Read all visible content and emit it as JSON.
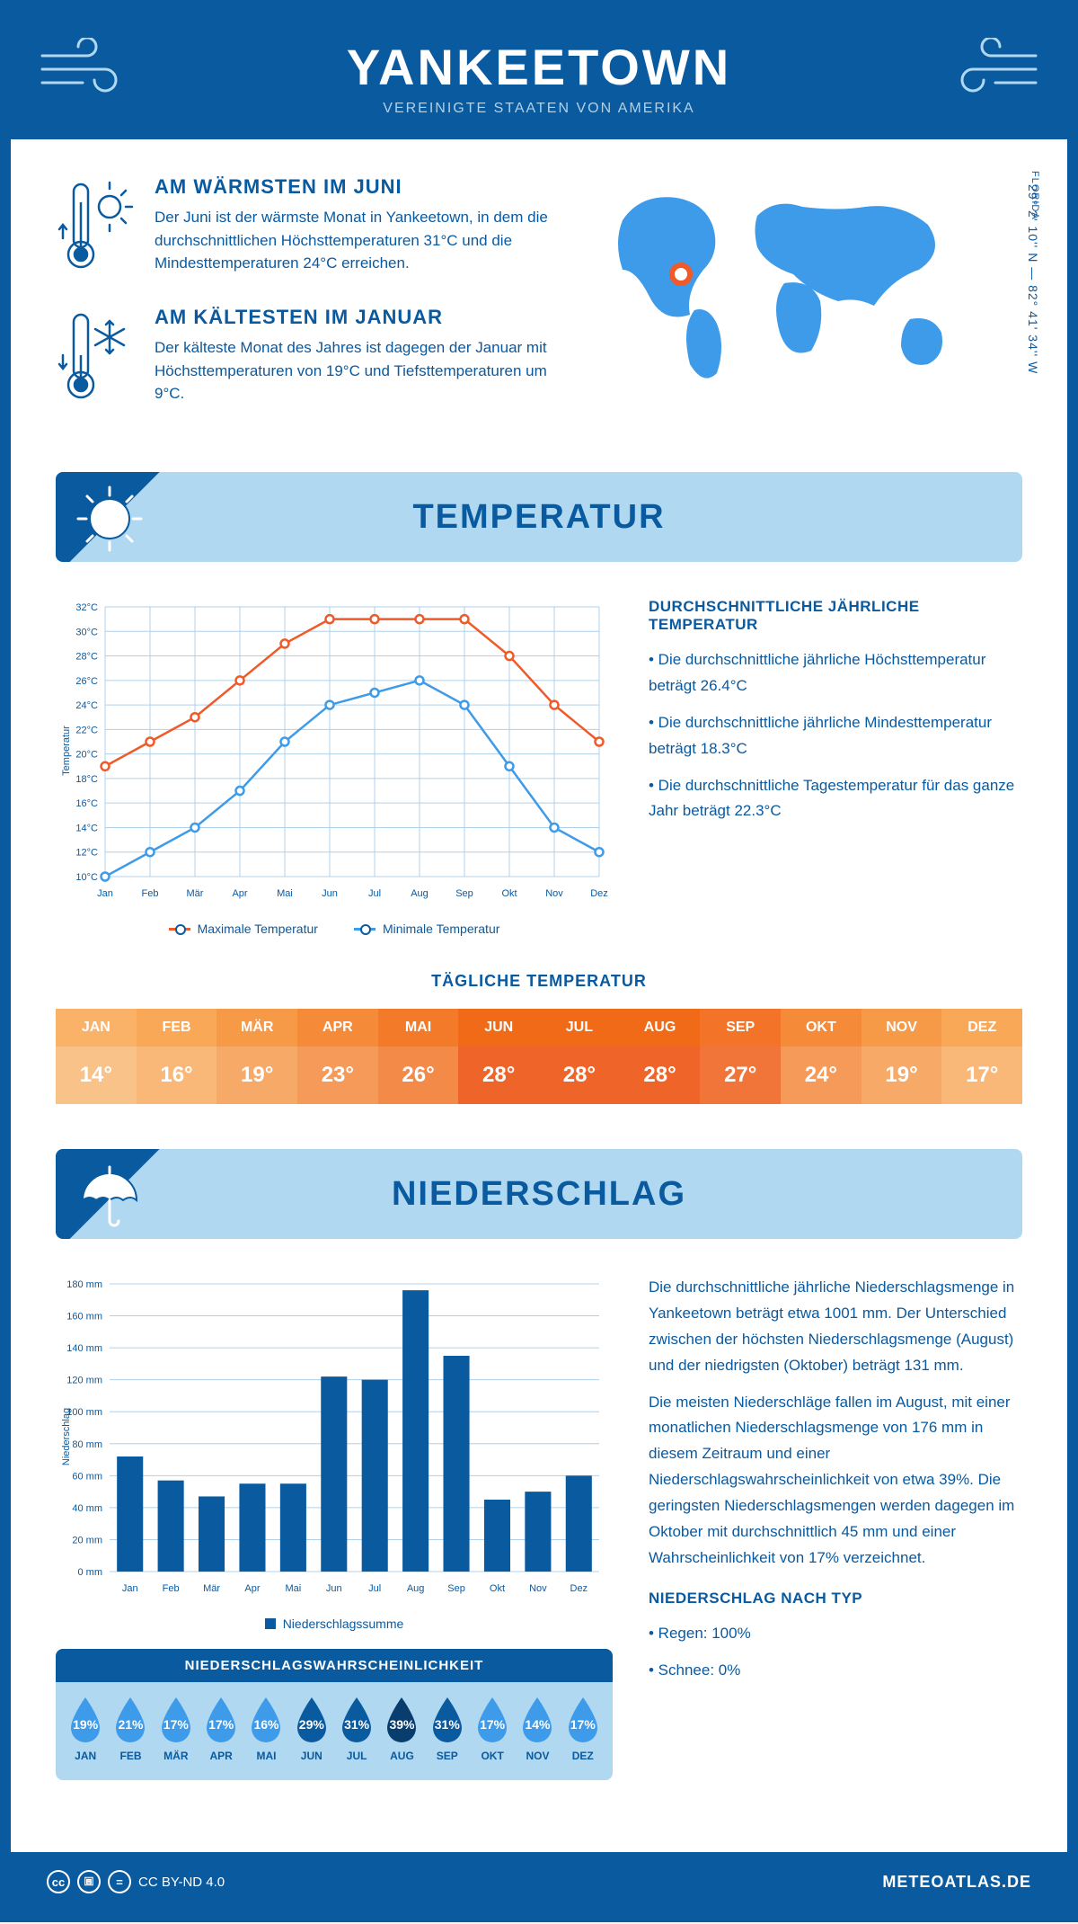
{
  "header": {
    "title": "YANKEETOWN",
    "subtitle": "VEREINIGTE STAATEN VON AMERIKA"
  },
  "location": {
    "region": "FLORIDA",
    "coords": "29° 2' 10'' N — 82° 41' 34'' W"
  },
  "facts": {
    "warm": {
      "title": "AM WÄRMSTEN IM JUNI",
      "text": "Der Juni ist der wärmste Monat in Yankeetown, in dem die durchschnittlichen Höchsttemperaturen 31°C und die Mindesttemperaturen 24°C erreichen."
    },
    "cold": {
      "title": "AM KÄLTESTEN IM JANUAR",
      "text": "Der kälteste Monat des Jahres ist dagegen der Januar mit Höchsttemperaturen von 19°C und Tiefsttemperaturen um 9°C."
    }
  },
  "sections": {
    "temp": "TEMPERATUR",
    "precip": "NIEDERSCHLAG"
  },
  "temp_chart": {
    "type": "line",
    "y_label": "Temperatur",
    "y_min": 10,
    "y_max": 32,
    "y_step": 2,
    "months": [
      "Jan",
      "Feb",
      "Mär",
      "Apr",
      "Mai",
      "Jun",
      "Jul",
      "Aug",
      "Sep",
      "Okt",
      "Nov",
      "Dez"
    ],
    "series": {
      "max": {
        "label": "Maximale Temperatur",
        "color": "#f05a28",
        "values": [
          19,
          21,
          23,
          26,
          29,
          31,
          31,
          31,
          31,
          28,
          24,
          21
        ]
      },
      "min": {
        "label": "Minimale Temperatur",
        "color": "#3d9be9",
        "values": [
          10,
          12,
          14,
          17,
          21,
          24,
          25,
          26,
          24,
          19,
          14,
          12
        ]
      }
    }
  },
  "temp_info": {
    "title": "DURCHSCHNITTLICHE JÄHRLICHE TEMPERATUR",
    "bullets": [
      "• Die durchschnittliche jährliche Höchsttemperatur beträgt 26.4°C",
      "• Die durchschnittliche jährliche Mindesttemperatur beträgt 18.3°C",
      "• Die durchschnittliche Tagestemperatur für das ganze Jahr beträgt 22.3°C"
    ]
  },
  "daily_temp": {
    "title": "TÄGLICHE TEMPERATUR",
    "months": [
      "JAN",
      "FEB",
      "MÄR",
      "APR",
      "MAI",
      "JUN",
      "JUL",
      "AUG",
      "SEP",
      "OKT",
      "NOV",
      "DEZ"
    ],
    "values": [
      "14°",
      "16°",
      "19°",
      "23°",
      "26°",
      "28°",
      "28°",
      "28°",
      "27°",
      "24°",
      "19°",
      "17°"
    ],
    "head_colors": [
      "#f9b268",
      "#f9a858",
      "#f79a48",
      "#f58a38",
      "#f37a28",
      "#f16a18",
      "#f16a18",
      "#f16a18",
      "#f37428",
      "#f58a38",
      "#f79a48",
      "#f9a858"
    ],
    "val_colors": [
      "#f9c288",
      "#f9b878",
      "#f7aa68",
      "#f59a58",
      "#f38a48",
      "#ef6428",
      "#ef6428",
      "#ef6428",
      "#f17438",
      "#f59a58",
      "#f7aa68",
      "#f9b878"
    ]
  },
  "precip_chart": {
    "type": "bar",
    "y_label": "Niederschlag",
    "y_min": 0,
    "y_max": 180,
    "y_step": 20,
    "months": [
      "Jan",
      "Feb",
      "Mär",
      "Apr",
      "Mai",
      "Jun",
      "Jul",
      "Aug",
      "Sep",
      "Okt",
      "Nov",
      "Dez"
    ],
    "values": [
      72,
      57,
      47,
      55,
      55,
      122,
      120,
      176,
      135,
      45,
      50,
      60
    ],
    "bar_color": "#0a5aa0",
    "legend": "Niederschlagssumme"
  },
  "precip_text": {
    "p1": "Die durchschnittliche jährliche Niederschlagsmenge in Yankeetown beträgt etwa 1001 mm. Der Unterschied zwischen der höchsten Niederschlagsmenge (August) und der niedrigsten (Oktober) beträgt 131 mm.",
    "p2": "Die meisten Niederschläge fallen im August, mit einer monatlichen Niederschlagsmenge von 176 mm in diesem Zeitraum und einer Niederschlagswahrscheinlichkeit von etwa 39%. Die geringsten Niederschlagsmengen werden dagegen im Oktober mit durchschnittlich 45 mm und einer Wahrscheinlichkeit von 17% verzeichnet.",
    "type_title": "NIEDERSCHLAG NACH TYP",
    "types": [
      "• Regen: 100%",
      "• Schnee: 0%"
    ]
  },
  "probability": {
    "title": "NIEDERSCHLAGSWAHRSCHEINLICHKEIT",
    "months": [
      "JAN",
      "FEB",
      "MÄR",
      "APR",
      "MAI",
      "JUN",
      "JUL",
      "AUG",
      "SEP",
      "OKT",
      "NOV",
      "DEZ"
    ],
    "values": [
      "19%",
      "21%",
      "17%",
      "17%",
      "16%",
      "29%",
      "31%",
      "39%",
      "31%",
      "17%",
      "14%",
      "17%"
    ],
    "colors": [
      "#3d9be9",
      "#3d9be9",
      "#3d9be9",
      "#3d9be9",
      "#3d9be9",
      "#0a5aa0",
      "#0a5aa0",
      "#083d6e",
      "#0a5aa0",
      "#3d9be9",
      "#3d9be9",
      "#3d9be9"
    ]
  },
  "footer": {
    "license": "CC BY-ND 4.0",
    "brand": "METEOATLAS.DE"
  },
  "colors": {
    "primary": "#0a5aa0",
    "light": "#b0d8f0",
    "accent": "#3d9be9",
    "orange": "#f05a28"
  }
}
